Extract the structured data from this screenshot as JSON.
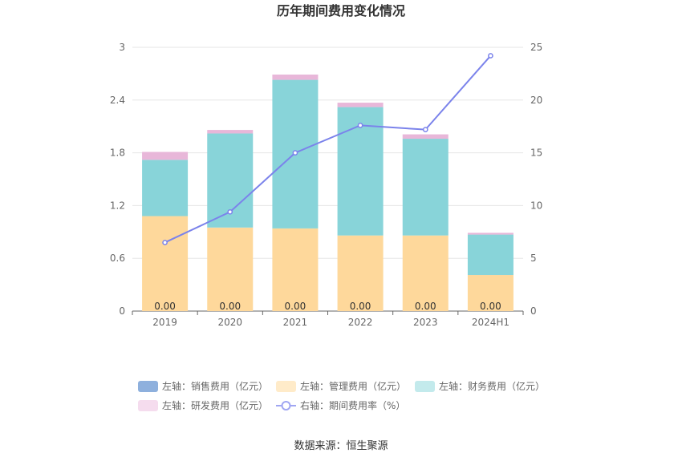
{
  "chart_data": {
    "type": "bar",
    "title": "历年期间费用变化情况",
    "categories": [
      "2019",
      "2020",
      "2021",
      "2022",
      "2023",
      "2024H1"
    ],
    "stacked": true,
    "left_axis": {
      "min": 0,
      "max": 3,
      "ticks": [
        "0",
        "0.6",
        "1.2",
        "1.8",
        "2.4",
        "3"
      ]
    },
    "right_axis": {
      "min": 0,
      "max": 25,
      "ticks": [
        "0",
        "5",
        "10",
        "15",
        "20",
        "25"
      ]
    },
    "series": [
      {
        "name": "左轴：销售费用（亿元）",
        "type": "bar",
        "axis": "left",
        "color": "#8eb0dd",
        "values": [
          0,
          0,
          0,
          0,
          0,
          0
        ],
        "labels": [
          "0.00",
          "0.00",
          "0.00",
          "0.00",
          "0.00",
          "0.00"
        ]
      },
      {
        "name": "左轴：管理费用（亿元）",
        "type": "bar",
        "axis": "left",
        "color": "#fed89b",
        "values": [
          1.08,
          0.95,
          0.94,
          0.86,
          0.86,
          0.41
        ]
      },
      {
        "name": "左轴：财务费用（亿元）",
        "type": "bar",
        "axis": "left",
        "color": "#88d4d9",
        "values": [
          0.64,
          1.07,
          1.69,
          1.46,
          1.1,
          0.46
        ]
      },
      {
        "name": "左轴：研发费用（亿元）",
        "type": "bar",
        "axis": "left",
        "color": "#e8b7d9",
        "values": [
          0.09,
          0.04,
          0.06,
          0.05,
          0.05,
          0.02
        ]
      },
      {
        "name": "右轴：期间费用率（%）",
        "type": "line",
        "axis": "right",
        "color": "#7b83eb",
        "values": [
          6.5,
          9.4,
          15.0,
          17.6,
          17.2,
          24.2
        ]
      }
    ],
    "legend_position": "bottom",
    "grid": true
  },
  "footer": {
    "source": "数据来源：恒生聚源"
  }
}
